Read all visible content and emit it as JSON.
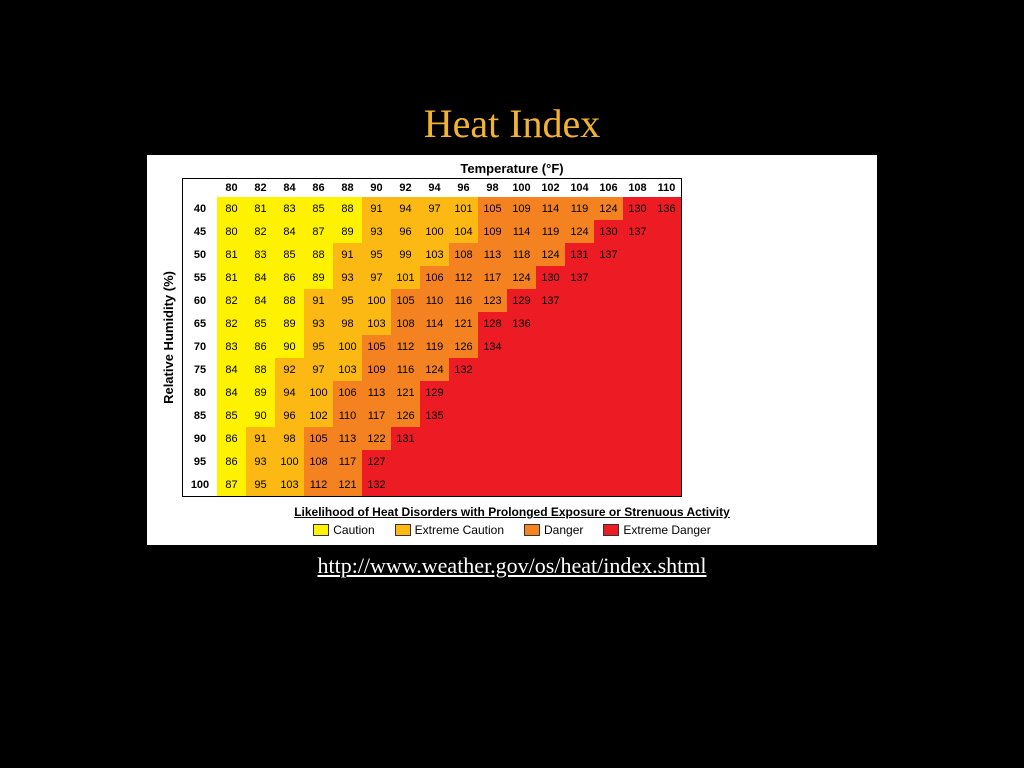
{
  "title": "Heat Index",
  "source_url": "http://www.weather.gov/os/heat/index.shtml",
  "chart": {
    "type": "heatmap",
    "x_label": "Temperature (°F)",
    "y_label": "Relative Humidity (%)",
    "caption": "Likelihood of Heat Disorders with Prolonged Exposure or Strenuous Activity",
    "temperatures": [
      80,
      82,
      84,
      86,
      88,
      90,
      92,
      94,
      96,
      98,
      100,
      102,
      104,
      106,
      108,
      110
    ],
    "humidities": [
      40,
      45,
      50,
      55,
      60,
      65,
      70,
      75,
      80,
      85,
      90,
      95,
      100
    ],
    "cells": {
      "40": [
        80,
        81,
        83,
        85,
        88,
        91,
        94,
        97,
        101,
        105,
        109,
        114,
        119,
        124,
        130,
        136
      ],
      "45": [
        80,
        82,
        84,
        87,
        89,
        93,
        96,
        100,
        104,
        109,
        114,
        119,
        124,
        130,
        137,
        null
      ],
      "50": [
        81,
        83,
        85,
        88,
        91,
        95,
        99,
        103,
        108,
        113,
        118,
        124,
        131,
        137,
        null,
        null
      ],
      "55": [
        81,
        84,
        86,
        89,
        93,
        97,
        101,
        106,
        112,
        117,
        124,
        130,
        137,
        null,
        null,
        null
      ],
      "60": [
        82,
        84,
        88,
        91,
        95,
        100,
        105,
        110,
        116,
        123,
        129,
        137,
        null,
        null,
        null,
        null
      ],
      "65": [
        82,
        85,
        89,
        93,
        98,
        103,
        108,
        114,
        121,
        128,
        136,
        null,
        null,
        null,
        null,
        null
      ],
      "70": [
        83,
        86,
        90,
        95,
        100,
        105,
        112,
        119,
        126,
        134,
        null,
        null,
        null,
        null,
        null,
        null
      ],
      "75": [
        84,
        88,
        92,
        97,
        103,
        109,
        116,
        124,
        132,
        null,
        null,
        null,
        null,
        null,
        null,
        null
      ],
      "80": [
        84,
        89,
        94,
        100,
        106,
        113,
        121,
        129,
        null,
        null,
        null,
        null,
        null,
        null,
        null,
        null
      ],
      "85": [
        85,
        90,
        96,
        102,
        110,
        117,
        126,
        135,
        null,
        null,
        null,
        null,
        null,
        null,
        null,
        null
      ],
      "90": [
        86,
        91,
        98,
        105,
        113,
        122,
        131,
        null,
        null,
        null,
        null,
        null,
        null,
        null,
        null,
        null
      ],
      "95": [
        86,
        93,
        100,
        108,
        117,
        127,
        null,
        null,
        null,
        null,
        null,
        null,
        null,
        null,
        null,
        null
      ],
      "100": [
        87,
        95,
        103,
        112,
        121,
        132,
        null,
        null,
        null,
        null,
        null,
        null,
        null,
        null,
        null,
        null
      ]
    },
    "thresholds": [
      {
        "max": 90,
        "color": "#fff200",
        "label": "Caution"
      },
      {
        "max": 104,
        "color": "#fdb913",
        "label": "Extreme Caution"
      },
      {
        "max": 126,
        "color": "#f58220",
        "label": "Danger"
      },
      {
        "max": 9999,
        "color": "#ed1c24",
        "label": "Extreme Danger"
      }
    ],
    "empty_color": "#ed1c24",
    "background_color": "#ffffff",
    "cell_border": "transparent",
    "font_family": "Arial",
    "header_fontsize": 11,
    "cell_fontsize": 11,
    "label_fontsize": 13
  },
  "slide": {
    "background_color": "#000000",
    "title_color": "#f2b233",
    "title_fontsize": 40,
    "link_color": "#ffffff",
    "link_fontsize": 22
  }
}
